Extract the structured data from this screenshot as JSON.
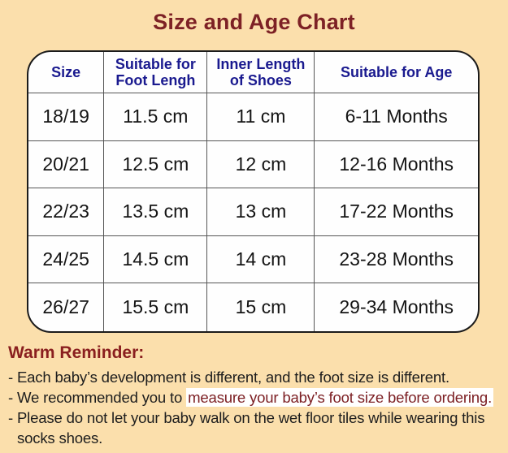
{
  "colors": {
    "page_background": "#FBDFAC",
    "title_text": "#7D2125",
    "table_header_text": "#1A1A8F",
    "table_border": "#1B1B1B",
    "grid_line": "#565656",
    "cell_text": "#141414",
    "reminder_heading_text": "#8A1F1F",
    "body_text": "#1E1E1E",
    "highlight_background": "#FFFFFF",
    "highlight_text": "#7D2125"
  },
  "chart_data": {
    "type": "table",
    "title": "Size and Age Chart",
    "columns": [
      "Size",
      "Suitable for Foot Lengh",
      "Inner Length of Shoes",
      "Suitable for Age"
    ],
    "rows": [
      [
        "18/19",
        "11.5 cm",
        "11 cm",
        "6-11 Months"
      ],
      [
        "20/21",
        "12.5 cm",
        "12 cm",
        "12-16 Months"
      ],
      [
        "22/23",
        "13.5 cm",
        "13 cm",
        "17-22 Months"
      ],
      [
        "24/25",
        "14.5 cm",
        "14 cm",
        "23-28 Months"
      ],
      [
        "26/27",
        "15.5 cm",
        "15 cm",
        "29-34 Months"
      ]
    ]
  },
  "reminder": {
    "heading": "Warm Reminder:",
    "line1": "- Each baby’s development is different, and the foot size is different.",
    "line2_plain": "- We recommended you to ",
    "line2_highlight": "measure your baby’s foot size before ordering.",
    "line3": "- Please do not let your baby walk on the wet floor tiles while wearing this socks shoes."
  }
}
